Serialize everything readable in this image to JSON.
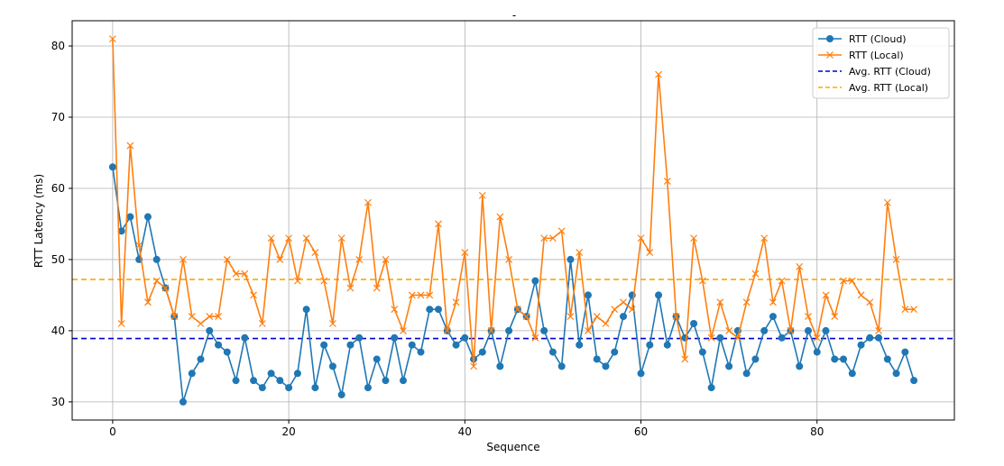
{
  "chart_data": {
    "type": "line",
    "title": "-",
    "xlabel": "Sequence",
    "ylabel": "RTT Latency (ms)",
    "xlim": [
      -4.6,
      95.6
    ],
    "ylim": [
      27.45,
      83.55
    ],
    "xticks": [
      0,
      20,
      40,
      60,
      80
    ],
    "yticks": [
      30,
      40,
      50,
      60,
      70,
      80
    ],
    "grid": true,
    "legend_position": "top-right",
    "colors": {
      "cloud": "#1f77b4",
      "local": "#ff7f0e",
      "avg_cloud": "#0000cc",
      "avg_local": "#ffa500"
    },
    "series": [
      {
        "name": "RTT (Cloud)",
        "marker": "o",
        "color": "#1f77b4",
        "values": [
          63,
          54,
          56,
          50,
          56,
          50,
          46,
          42,
          30,
          34,
          36,
          40,
          38,
          37,
          33,
          39,
          33,
          32,
          34,
          33,
          32,
          34,
          43,
          32,
          38,
          35,
          31,
          38,
          39,
          32,
          36,
          33,
          39,
          33,
          38,
          37,
          43,
          43,
          40,
          38,
          39,
          36,
          37,
          40,
          35,
          40,
          43,
          42,
          47,
          40,
          37,
          35,
          50,
          38,
          45,
          36,
          35,
          37,
          42,
          45,
          34,
          38,
          45,
          38,
          42,
          39,
          41,
          37,
          32,
          39,
          35,
          40,
          34,
          36,
          40,
          42,
          39,
          40,
          35,
          40,
          37,
          40,
          36,
          36,
          34,
          38,
          39,
          39,
          36,
          34,
          37,
          33
        ]
      },
      {
        "name": "RTT (Local)",
        "marker": "x",
        "color": "#ff7f0e",
        "values": [
          81,
          41,
          66,
          52,
          44,
          47,
          46,
          42,
          50,
          42,
          41,
          42,
          42,
          50,
          48,
          48,
          45,
          41,
          53,
          50,
          53,
          47,
          53,
          51,
          47,
          41,
          53,
          46,
          50,
          58,
          46,
          50,
          43,
          40,
          45,
          45,
          45,
          55,
          40,
          44,
          51,
          35,
          59,
          40,
          56,
          50,
          43,
          42,
          39,
          53,
          53,
          54,
          42,
          51,
          40,
          42,
          41,
          43,
          44,
          43,
          53,
          51,
          76,
          61,
          42,
          36,
          53,
          47,
          39,
          44,
          40,
          39,
          44,
          48,
          53,
          44,
          47,
          40,
          49,
          42,
          39,
          45,
          42,
          47,
          47,
          45,
          44,
          40,
          58,
          50,
          43,
          43
        ]
      },
      {
        "name": "Avg. RTT (Cloud)",
        "style": "dashed",
        "color": "#0000cc",
        "value": 38.9
      },
      {
        "name": "Avg. RTT (Local)",
        "style": "dashed",
        "color": "#ffa500",
        "value": 47.2
      }
    ]
  }
}
